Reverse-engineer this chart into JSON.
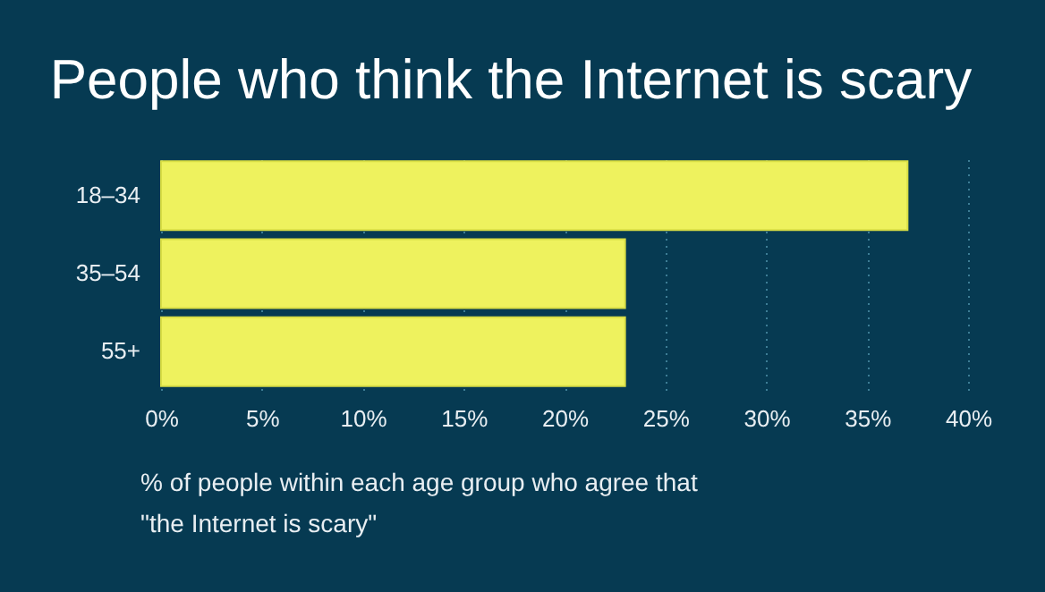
{
  "chart_data": {
    "type": "bar",
    "orientation": "horizontal",
    "title": "People who think the Internet is scary",
    "xlabel": "% of people within each age group who agree that\n\"the Internet is scary\"",
    "categories": [
      "18–34",
      "35–54",
      "55+"
    ],
    "values": [
      37,
      23,
      23
    ],
    "color": "#eef25e",
    "xlim": [
      0,
      40
    ],
    "xticks": [
      {
        "value": 0,
        "label": "0%"
      },
      {
        "value": 5,
        "label": "5%"
      },
      {
        "value": 10,
        "label": "10%"
      },
      {
        "value": 15,
        "label": "15%"
      },
      {
        "value": 20,
        "label": "20%"
      },
      {
        "value": 25,
        "label": "25%"
      },
      {
        "value": 30,
        "label": "30%"
      },
      {
        "value": 35,
        "label": "35%"
      },
      {
        "value": 40,
        "label": "40%"
      }
    ],
    "grid": "x"
  }
}
